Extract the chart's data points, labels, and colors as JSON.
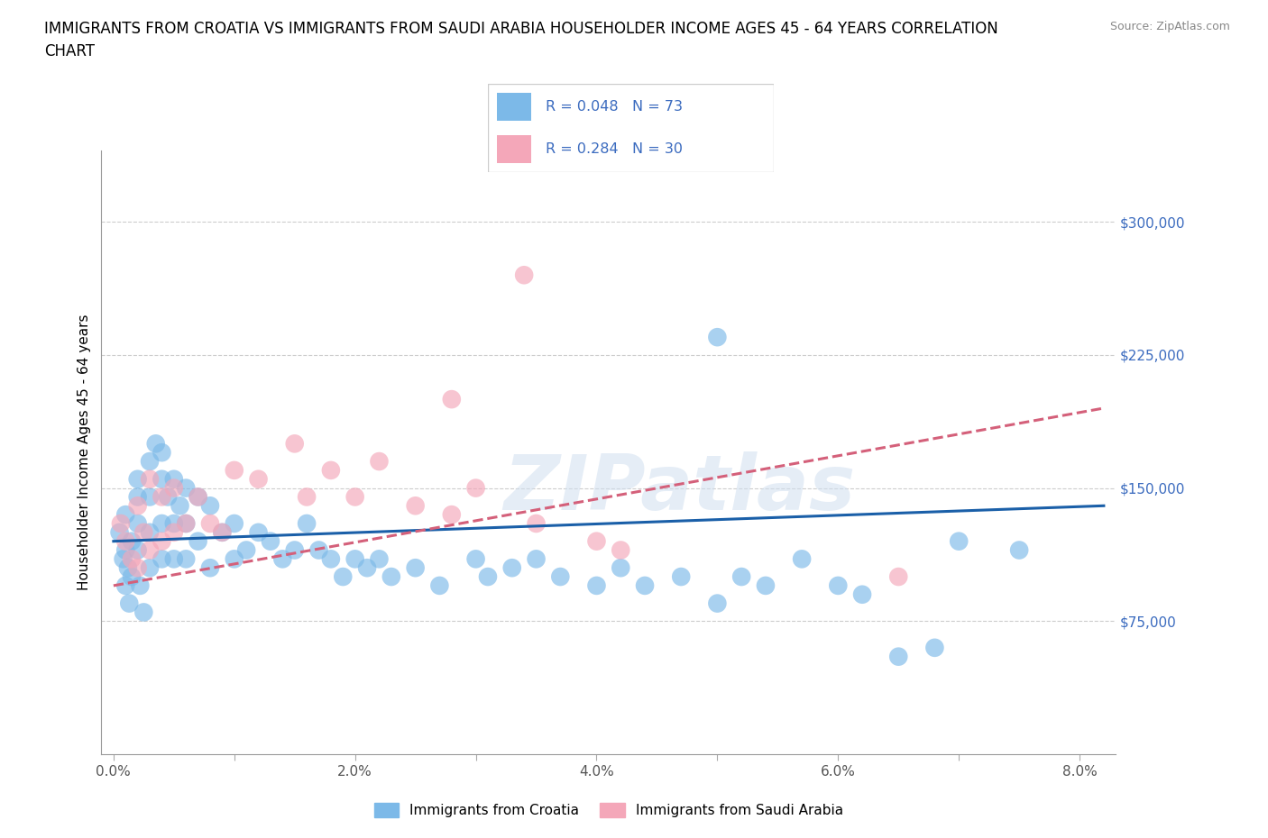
{
  "title": "IMMIGRANTS FROM CROATIA VS IMMIGRANTS FROM SAUDI ARABIA HOUSEHOLDER INCOME AGES 45 - 64 YEARS CORRELATION\nCHART",
  "source": "Source: ZipAtlas.com",
  "ylabel": "Householder Income Ages 45 - 64 years",
  "watermark": "ZIPatlas",
  "xlim": [
    -0.001,
    0.083
  ],
  "ylim": [
    0,
    340000
  ],
  "yticks": [
    75000,
    150000,
    225000,
    300000
  ],
  "ytick_labels": [
    "$75,000",
    "$150,000",
    "$225,000",
    "$300,000"
  ],
  "xticks": [
    0.0,
    0.01,
    0.02,
    0.03,
    0.04,
    0.05,
    0.06,
    0.07,
    0.08
  ],
  "xtick_labels": [
    "0.0%",
    "",
    "2.0%",
    "",
    "4.0%",
    "",
    "6.0%",
    "",
    "8.0%"
  ],
  "croatia_color": "#7cb9e8",
  "saudi_color": "#f4a7b9",
  "croatia_line_color": "#1a5fa8",
  "saudi_line_color": "#d4607a",
  "R_croatia": 0.048,
  "N_croatia": 73,
  "R_saudi": 0.284,
  "N_saudi": 30,
  "legend_croatia": "Immigrants from Croatia",
  "legend_saudi": "Immigrants from Saudi Arabia",
  "croatia_x": [
    0.0005,
    0.0008,
    0.001,
    0.001,
    0.001,
    0.0012,
    0.0013,
    0.0015,
    0.0015,
    0.002,
    0.002,
    0.002,
    0.002,
    0.0022,
    0.0025,
    0.003,
    0.003,
    0.003,
    0.003,
    0.0035,
    0.004,
    0.004,
    0.004,
    0.004,
    0.0045,
    0.005,
    0.005,
    0.005,
    0.0055,
    0.006,
    0.006,
    0.006,
    0.007,
    0.007,
    0.008,
    0.008,
    0.009,
    0.01,
    0.01,
    0.011,
    0.012,
    0.013,
    0.014,
    0.015,
    0.016,
    0.017,
    0.018,
    0.019,
    0.02,
    0.021,
    0.022,
    0.023,
    0.025,
    0.027,
    0.03,
    0.031,
    0.033,
    0.035,
    0.037,
    0.04,
    0.042,
    0.044,
    0.047,
    0.05,
    0.052,
    0.054,
    0.057,
    0.06,
    0.062,
    0.065,
    0.068,
    0.07,
    0.075
  ],
  "croatia_y": [
    125000,
    110000,
    95000,
    135000,
    115000,
    105000,
    85000,
    120000,
    100000,
    130000,
    145000,
    155000,
    115000,
    95000,
    80000,
    165000,
    145000,
    125000,
    105000,
    175000,
    170000,
    155000,
    130000,
    110000,
    145000,
    155000,
    130000,
    110000,
    140000,
    150000,
    130000,
    110000,
    145000,
    120000,
    140000,
    105000,
    125000,
    130000,
    110000,
    115000,
    125000,
    120000,
    110000,
    115000,
    130000,
    115000,
    110000,
    100000,
    110000,
    105000,
    110000,
    100000,
    105000,
    95000,
    110000,
    100000,
    105000,
    110000,
    100000,
    95000,
    105000,
    95000,
    100000,
    85000,
    100000,
    95000,
    110000,
    95000,
    90000,
    55000,
    60000,
    120000,
    115000
  ],
  "croatia_outlier_x": [
    0.05
  ],
  "croatia_outlier_y": [
    235000
  ],
  "saudi_x": [
    0.0006,
    0.001,
    0.0015,
    0.002,
    0.002,
    0.0025,
    0.003,
    0.003,
    0.004,
    0.004,
    0.005,
    0.005,
    0.006,
    0.007,
    0.008,
    0.009,
    0.01,
    0.012,
    0.015,
    0.016,
    0.018,
    0.02,
    0.022,
    0.025,
    0.028,
    0.03,
    0.035,
    0.04,
    0.042,
    0.065
  ],
  "saudi_y": [
    130000,
    120000,
    110000,
    140000,
    105000,
    125000,
    155000,
    115000,
    145000,
    120000,
    150000,
    125000,
    130000,
    145000,
    130000,
    125000,
    160000,
    155000,
    175000,
    145000,
    160000,
    145000,
    165000,
    140000,
    135000,
    150000,
    130000,
    120000,
    115000,
    100000
  ],
  "saudi_outlier_x": [
    0.034
  ],
  "saudi_outlier_y": [
    270000
  ],
  "saudi_outlier2_x": [
    0.028
  ],
  "saudi_outlier2_y": [
    200000
  ],
  "grid_color": "#cccccc",
  "text_color": "#3b6bbf",
  "title_fontsize": 12,
  "axis_label_fontsize": 11,
  "tick_fontsize": 11
}
